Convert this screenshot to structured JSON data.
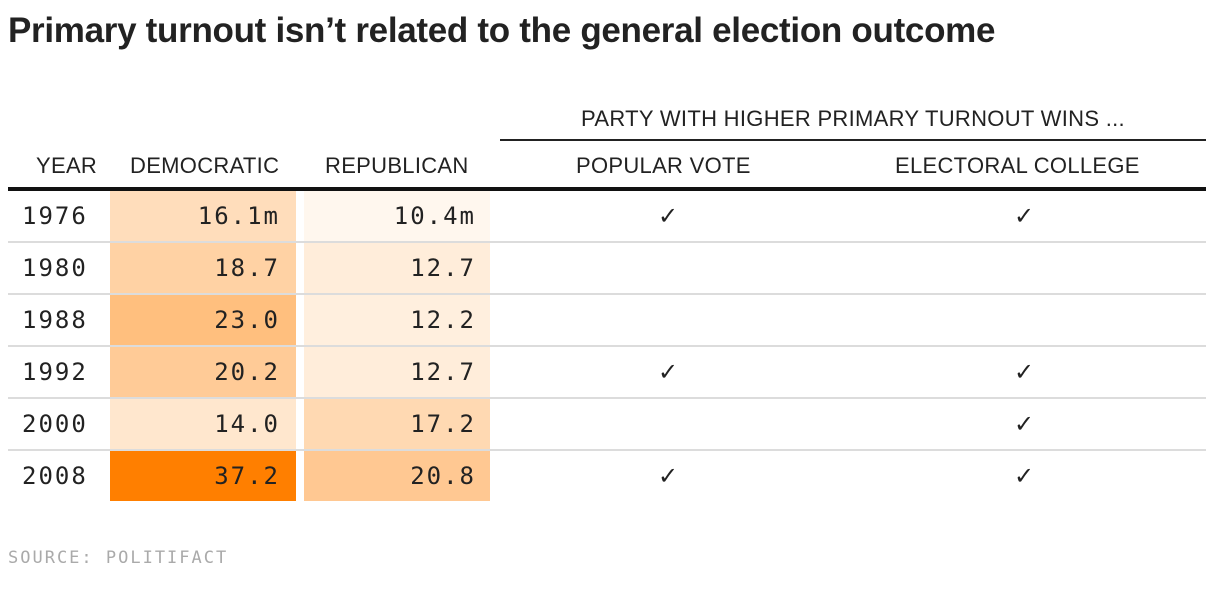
{
  "title": "Primary turnout isn’t related to the general election outcome",
  "group_label": "PARTY WITH HIGHER PRIMARY TURNOUT WINS ...",
  "headers": {
    "year": "YEAR",
    "democratic": "DEMOCRATIC",
    "republican": "REPUBLICAN",
    "popular_vote": "POPULAR VOTE",
    "electoral_college": "ELECTORAL COLLEGE"
  },
  "check_symbol": "✓",
  "source": "SOURCE: POLITIFACT",
  "colors": {
    "heat_low": "#fff7ee",
    "heat_high": "#ff7f00",
    "text": "#222222",
    "source": "#aaaaaa",
    "row_rule": "#dcdcdc"
  },
  "chart_data": {
    "type": "table",
    "title": "Primary turnout isn’t related to the general election outcome",
    "columns": [
      "YEAR",
      "DEMOCRATIC",
      "REPUBLICAN",
      "POPULAR VOTE",
      "ELECTORAL COLLEGE"
    ],
    "heat_range": [
      10.4,
      37.2
    ],
    "rows": [
      {
        "year": "1976",
        "democratic": 16.1,
        "democratic_label": "16.1m",
        "republican": 10.4,
        "republican_label": "10.4m",
        "popular_vote": true,
        "electoral_college": true
      },
      {
        "year": "1980",
        "democratic": 18.7,
        "democratic_label": "18.7",
        "republican": 12.7,
        "republican_label": "12.7",
        "popular_vote": false,
        "electoral_college": false
      },
      {
        "year": "1988",
        "democratic": 23.0,
        "democratic_label": "23.0",
        "republican": 12.2,
        "republican_label": "12.2",
        "popular_vote": false,
        "electoral_college": false
      },
      {
        "year": "1992",
        "democratic": 20.2,
        "democratic_label": "20.2",
        "republican": 12.7,
        "republican_label": "12.7",
        "popular_vote": true,
        "electoral_college": true
      },
      {
        "year": "2000",
        "democratic": 14.0,
        "democratic_label": "14.0",
        "republican": 17.2,
        "republican_label": "17.2",
        "popular_vote": false,
        "electoral_college": true
      },
      {
        "year": "2008",
        "democratic": 37.2,
        "democratic_label": "37.2",
        "republican": 20.8,
        "republican_label": "20.8",
        "popular_vote": true,
        "electoral_college": true
      }
    ]
  }
}
